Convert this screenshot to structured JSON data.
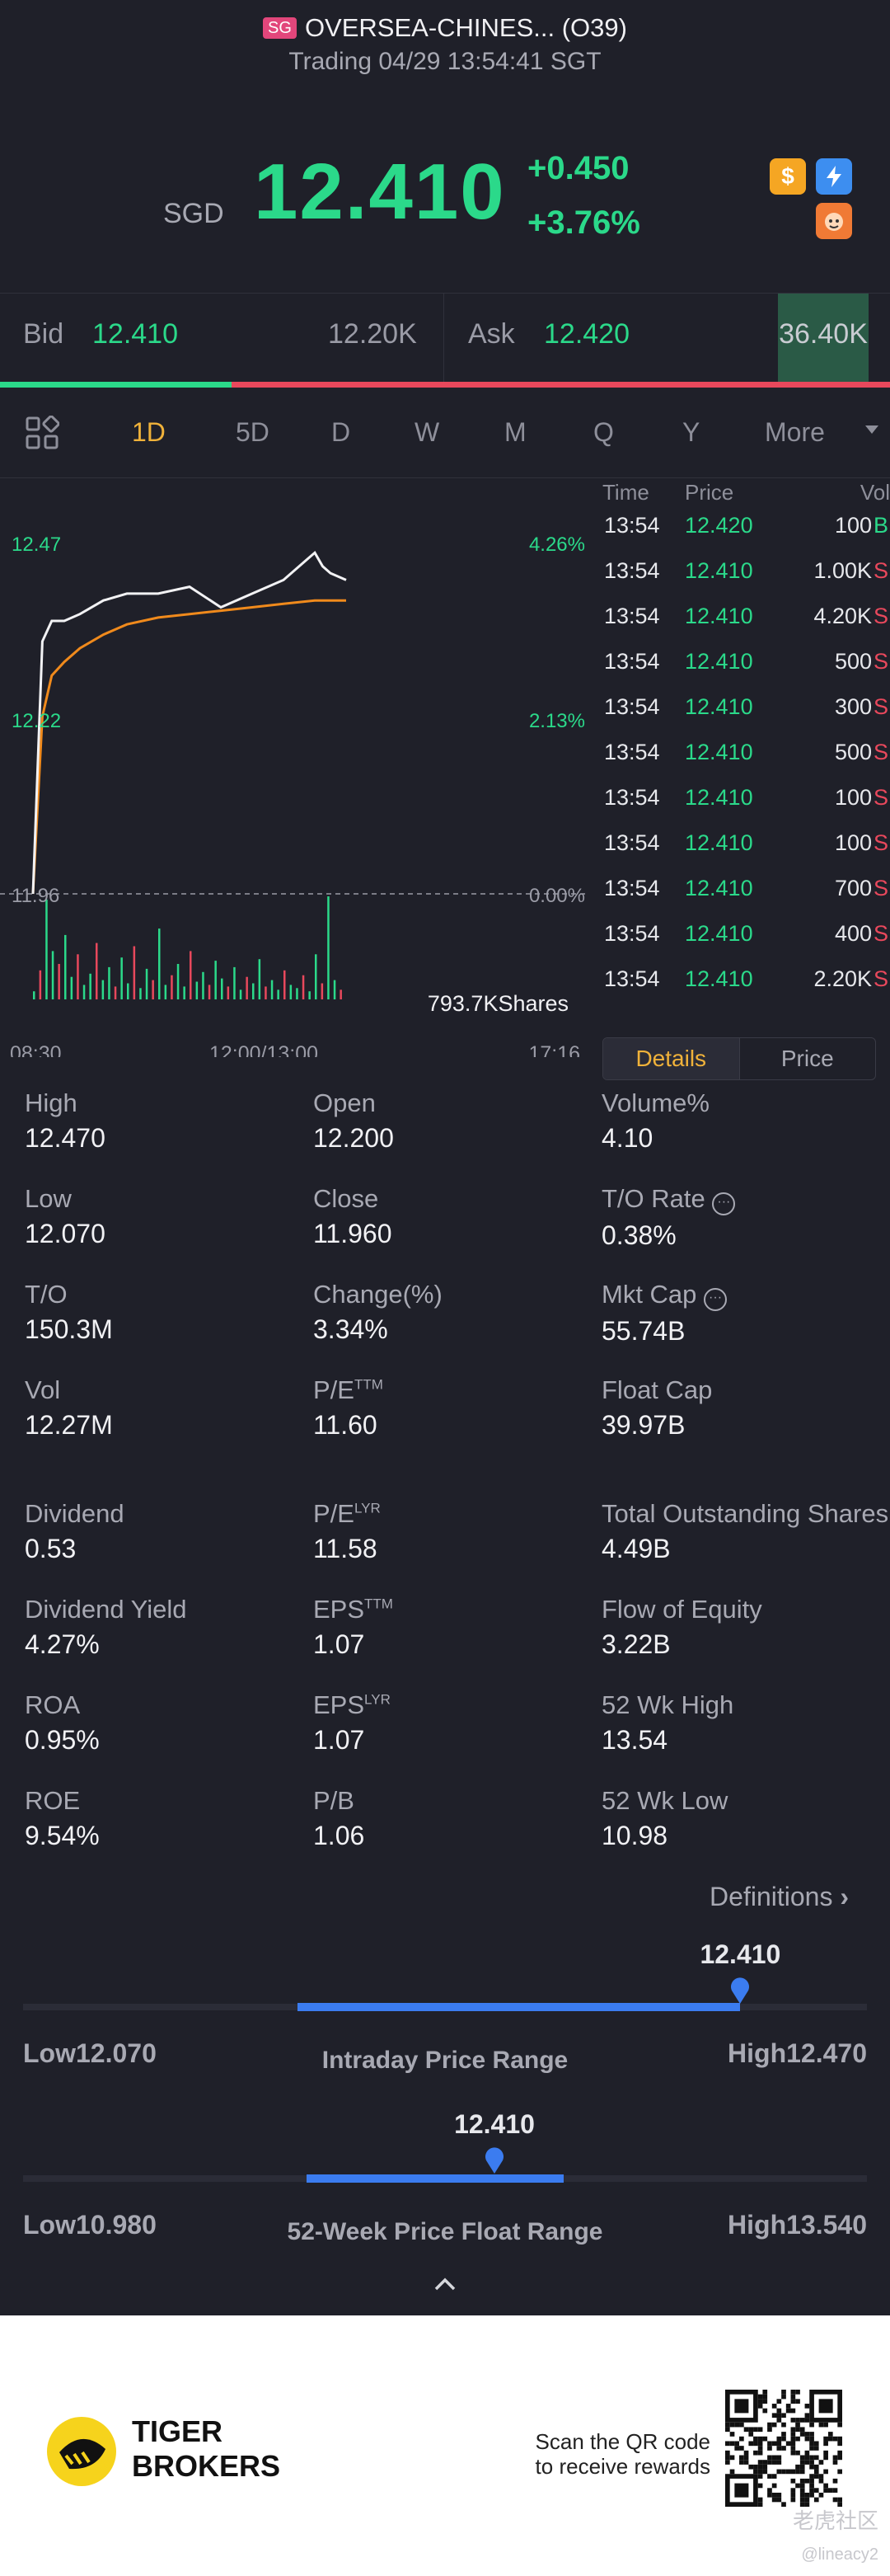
{
  "header": {
    "market_badge": "SG",
    "title": "OVERSEA-CHINES... (O39)",
    "status": "Trading 04/29 13:54:41 SGT",
    "currency": "SGD",
    "price": "12.410",
    "change": "+0.450",
    "change_pct": "+3.76%",
    "icons": [
      "dollar-icon",
      "lightning-icon",
      "tiger-mascot-icon"
    ]
  },
  "bidask": {
    "bid_label": "Bid",
    "bid_price": "12.410",
    "bid_size": "12.20K",
    "ask_label": "Ask",
    "ask_price": "12.420",
    "ask_size": "36.40K",
    "bid_share": 0.26
  },
  "tabs": {
    "items": [
      "1D",
      "5D",
      "D",
      "W",
      "M",
      "Q",
      "Y",
      "More"
    ],
    "active": "1D"
  },
  "chart": {
    "y_top_left": "12.47",
    "y_top_right": "4.26%",
    "y_mid_left": "12.22",
    "y_mid_right": "2.13%",
    "y_base_left": "11.96",
    "y_base_right": "0.00%",
    "volume_label": "793.7KShares",
    "time_start": "08:30",
    "time_mid": "12:00/13:00",
    "time_end": "17:16"
  },
  "chart_data": {
    "type": "line",
    "series": [
      {
        "x": [
          0,
          6,
          12,
          20,
          30,
          45,
          60,
          80,
          100,
          120,
          140,
          160,
          175,
          180,
          185,
          190,
          200
        ],
        "y": [
          11.96,
          12.33,
          12.36,
          12.36,
          12.37,
          12.39,
          12.4,
          12.4,
          12.41,
          12.38,
          12.4,
          12.42,
          12.45,
          12.46,
          12.44,
          12.43,
          12.42
        ]
      },
      {
        "x": [
          0,
          6,
          12,
          20,
          30,
          45,
          60,
          80,
          100,
          120,
          140,
          160,
          180,
          200
        ],
        "y": [
          11.96,
          12.22,
          12.28,
          12.3,
          12.32,
          12.34,
          12.355,
          12.365,
          12.37,
          12.375,
          12.38,
          12.385,
          12.39,
          12.39
        ]
      }
    ],
    "ylim": [
      11.96,
      12.47
    ],
    "volume": [
      5,
      18,
      62,
      30,
      22,
      40,
      14,
      28,
      9,
      16,
      35,
      12,
      20,
      8,
      26,
      10,
      33,
      7,
      19,
      12,
      44,
      9,
      15,
      22,
      8,
      30,
      11,
      17,
      9,
      24,
      13,
      8,
      20,
      6,
      14,
      10,
      25,
      8,
      12,
      6,
      18,
      9,
      7,
      15,
      5,
      28,
      10,
      64,
      12,
      6
    ]
  },
  "ticks": {
    "headers": [
      "Time",
      "Price",
      "Vol"
    ],
    "rows": [
      {
        "time": "13:54",
        "price": "12.420",
        "vol": "100",
        "side": "B"
      },
      {
        "time": "13:54",
        "price": "12.410",
        "vol": "1.00K",
        "side": "S"
      },
      {
        "time": "13:54",
        "price": "12.410",
        "vol": "4.20K",
        "side": "S"
      },
      {
        "time": "13:54",
        "price": "12.410",
        "vol": "500",
        "side": "S"
      },
      {
        "time": "13:54",
        "price": "12.410",
        "vol": "300",
        "side": "S"
      },
      {
        "time": "13:54",
        "price": "12.410",
        "vol": "500",
        "side": "S"
      },
      {
        "time": "13:54",
        "price": "12.410",
        "vol": "100",
        "side": "S"
      },
      {
        "time": "13:54",
        "price": "12.410",
        "vol": "100",
        "side": "S"
      },
      {
        "time": "13:54",
        "price": "12.410",
        "vol": "700",
        "side": "S"
      },
      {
        "time": "13:54",
        "price": "12.410",
        "vol": "400",
        "side": "S"
      },
      {
        "time": "13:54",
        "price": "12.410",
        "vol": "2.20K",
        "side": "S"
      }
    ],
    "details_tab": "Details",
    "price_tab": "Price"
  },
  "stats": [
    {
      "label": "High",
      "value": "12.470"
    },
    {
      "label": "Open",
      "value": "12.200"
    },
    {
      "label": "Volume%",
      "value": "4.10"
    },
    {
      "label": "Low",
      "value": "12.070"
    },
    {
      "label": "Close",
      "value": "11.960"
    },
    {
      "label": "T/O Rate",
      "value": "0.38%",
      "info": true
    },
    {
      "label": "T/O",
      "value": "150.3M"
    },
    {
      "label": "Change(%)",
      "value": "3.34%"
    },
    {
      "label": "Mkt Cap",
      "value": "55.74B",
      "info": true
    },
    {
      "label": "Vol",
      "value": "12.27M"
    },
    {
      "label": "P/E",
      "sup": "TTM",
      "value": "11.60"
    },
    {
      "label": "Float Cap",
      "value": "39.97B"
    },
    {
      "label": "Dividend",
      "value": "0.53"
    },
    {
      "label": "P/E",
      "sup": "LYR",
      "value": "11.58"
    },
    {
      "label": "Total Outstanding Shares",
      "value": "4.49B"
    },
    {
      "label": "Dividend Yield",
      "value": "4.27%"
    },
    {
      "label": "EPS",
      "sup": "TTM",
      "value": "1.07"
    },
    {
      "label": "Flow of Equity",
      "value": "3.22B"
    },
    {
      "label": "ROA",
      "value": "0.95%"
    },
    {
      "label": "EPS",
      "sup": "LYR",
      "value": "1.07"
    },
    {
      "label": "52 Wk High",
      "value": "13.54"
    },
    {
      "label": "ROE",
      "value": "9.54%"
    },
    {
      "label": "P/B",
      "value": "1.06"
    },
    {
      "label": "52 Wk Low",
      "value": "10.98"
    }
  ],
  "definitions_label": "Definitions",
  "intraday": {
    "title": "Intraday Price Range",
    "low": "Low12.070",
    "high": "High12.470",
    "current": "12.410",
    "low_num": 12.07,
    "high_num": 12.47,
    "cur_num": 12.41,
    "open_num": 12.2
  },
  "week52": {
    "title": "52-Week Price Float Range",
    "low": "Low10.980",
    "high": "High13.540",
    "current": "12.410",
    "low_num": 10.98,
    "high_num": 13.54,
    "cur_num": 12.41,
    "from_num": 11.84,
    "to_num": 12.62
  },
  "footer": {
    "brand_line1": "TIGER",
    "brand_line2": "BROKERS",
    "scan_line1": "Scan the QR code",
    "scan_line2": "to receive rewards",
    "watermark": "老虎社区",
    "handle": "@lineacy2"
  },
  "colors": {
    "up": "#2bd98a",
    "down": "#e8485c",
    "accent": "#f0b23a",
    "blue": "#3b7cf0",
    "avg_line": "#f08a1c"
  }
}
